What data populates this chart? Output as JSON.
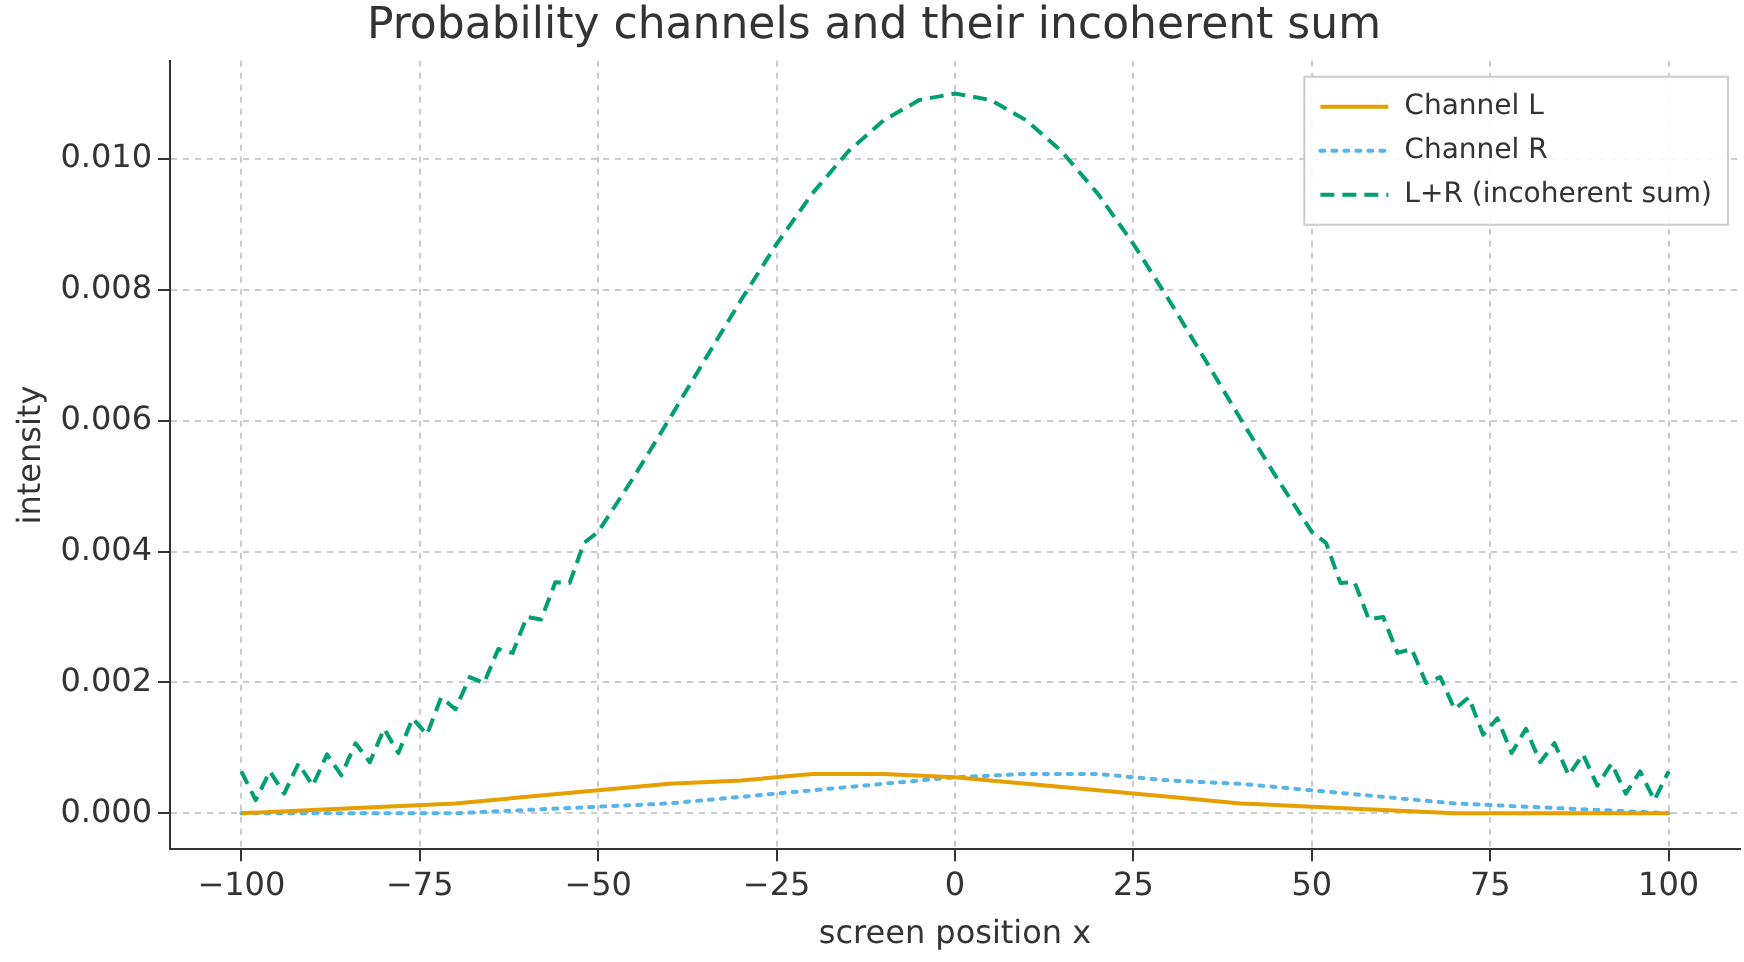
{
  "chart_data": {
    "type": "line",
    "title": "Probability channels and their incoherent sum",
    "xlabel": "screen position x",
    "ylabel": "intensity",
    "xlim": [
      -110,
      110
    ],
    "ylim": [
      -0.00055,
      0.0115
    ],
    "xticks": [
      {
        "value": -100,
        "label": "−100"
      },
      {
        "value": -75,
        "label": "−75"
      },
      {
        "value": -50,
        "label": "−50"
      },
      {
        "value": -25,
        "label": "−25"
      },
      0,
      25,
      50,
      75,
      100
    ],
    "yticks": [
      {
        "value": 0,
        "label": "0.000"
      },
      {
        "value": 0.002,
        "label": "0.002"
      },
      {
        "value": 0.004,
        "label": "0.004"
      },
      {
        "value": 0.006,
        "label": "0.006"
      },
      {
        "value": 0.008,
        "label": "0.008"
      },
      {
        "value": 0.01,
        "label": "0.010"
      }
    ],
    "grid": true,
    "legend": "top right",
    "marker": "none",
    "series": [
      {
        "name": "Channel L",
        "color": "#e69f00",
        "line_style": "solid",
        "x": [
          -100,
          -90,
          -80,
          -70,
          -60,
          -50,
          -40,
          -30,
          -20,
          -10,
          0,
          10,
          20,
          30,
          40,
          50,
          60,
          70,
          80,
          90,
          100
        ],
        "values": [
          0,
          5e-05,
          0.0001,
          0.00015,
          0.00025,
          0.00035,
          0.00045,
          0.0005,
          0.0006,
          0.0006,
          0.00055,
          0.00045,
          0.00035,
          0.00025,
          0.00015,
          0.0001,
          5e-05,
          0,
          0,
          0,
          0
        ]
      },
      {
        "name": "Channel R",
        "color": "#56b4e9",
        "line_style": "dotted",
        "x": [
          -100,
          -90,
          -80,
          -70,
          -60,
          -50,
          -40,
          -30,
          -20,
          -10,
          0,
          10,
          20,
          30,
          40,
          50,
          60,
          70,
          80,
          90,
          100
        ],
        "values": [
          0,
          0,
          0,
          0,
          5e-05,
          0.0001,
          0.00015,
          0.00025,
          0.00035,
          0.00045,
          0.00055,
          0.0006,
          0.0006,
          0.0005,
          0.00045,
          0.00035,
          0.00025,
          0.00015,
          0.0001,
          5e-05,
          0
        ]
      },
      {
        "name": "L+R (incoherent sum)",
        "color": "#009e73",
        "line_style": "dashed",
        "x": [
          -100,
          -98,
          -96,
          -94,
          -92,
          -90,
          -88,
          -86,
          -84,
          -82,
          -80,
          -78,
          -76,
          -74,
          -72,
          -70,
          -68,
          -66,
          -64,
          -62,
          -60,
          -58,
          -56,
          -54,
          -52,
          -50,
          -45,
          -40,
          -35,
          -30,
          -25,
          -20,
          -15,
          -10,
          -5,
          0,
          5,
          10,
          15,
          20,
          25,
          30,
          35,
          40,
          45,
          50,
          52,
          54,
          56,
          58,
          60,
          62,
          64,
          66,
          68,
          70,
          72,
          74,
          76,
          78,
          80,
          82,
          84,
          86,
          88,
          90,
          92,
          94,
          96,
          98,
          100
        ],
        "values": [
          0.00064,
          0.0002,
          0.00064,
          0.0003,
          0.00076,
          0.00042,
          0.0009,
          0.00058,
          0.00107,
          0.00078,
          0.00129,
          0.00092,
          0.00145,
          0.0012,
          0.00177,
          0.00159,
          0.00208,
          0.00199,
          0.00251,
          0.00245,
          0.003,
          0.00296,
          0.00353,
          0.00352,
          0.00413,
          0.0043,
          0.00514,
          0.00603,
          0.00694,
          0.00784,
          0.0087,
          0.00947,
          0.01011,
          0.01059,
          0.0109,
          0.011,
          0.0109,
          0.01059,
          0.01011,
          0.00947,
          0.0087,
          0.00784,
          0.00694,
          0.00603,
          0.00514,
          0.0043,
          0.00413,
          0.00352,
          0.00353,
          0.00296,
          0.003,
          0.00245,
          0.00251,
          0.00199,
          0.00208,
          0.00159,
          0.00177,
          0.0012,
          0.00145,
          0.00092,
          0.00129,
          0.00078,
          0.00107,
          0.00058,
          0.0009,
          0.00042,
          0.00076,
          0.0003,
          0.00064,
          0.0002,
          0.00064
        ]
      }
    ]
  }
}
